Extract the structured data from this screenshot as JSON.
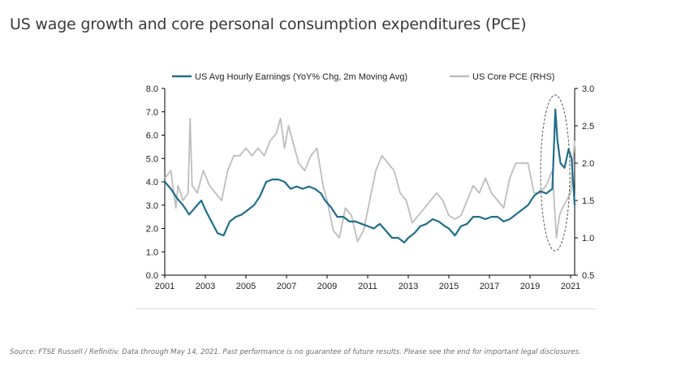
{
  "title": "US wage growth and core personal consumption expenditures (PCE)",
  "source": "Source: FTSE Russell / Refinitiv. Data through May 14, 2021. Past performance is no guarantee of future results. Please see the end for important legal disclosures.",
  "colors": {
    "wage": "#1f6e8c",
    "pce": "#bdbdbd",
    "axis": "#000000"
  },
  "chart_data": {
    "type": "line",
    "legend_position": "top",
    "x_ticks": [
      "2001",
      "2003",
      "2005",
      "2007",
      "2009",
      "2011",
      "2013",
      "2015",
      "2017",
      "2019",
      "2021"
    ],
    "x_range": [
      2001,
      2021.2
    ],
    "y_left": {
      "ticks": [
        "0.0",
        "1.0",
        "2.0",
        "3.0",
        "4.0",
        "5.0",
        "6.0",
        "7.0",
        "8.0"
      ],
      "range": [
        0,
        8
      ]
    },
    "y_right": {
      "ticks": [
        "0.5",
        "1.0",
        "1.5",
        "2.0",
        "2.5",
        "3.0"
      ],
      "range": [
        0.5,
        3.0
      ]
    },
    "annotation": "dashed ellipse highlighting 2020-2021",
    "series": [
      {
        "name": "US Avg Hourly Earnings (YoY% Chg, 2m Moving Avg)",
        "axis": "left",
        "x": [
          2001,
          2001.3,
          2001.6,
          2001.9,
          2002.2,
          2002.5,
          2002.8,
          2003.0,
          2003.3,
          2003.6,
          2003.9,
          2004.2,
          2004.5,
          2004.8,
          2005.1,
          2005.4,
          2005.7,
          2006.0,
          2006.3,
          2006.6,
          2006.9,
          2007.2,
          2007.5,
          2007.8,
          2008.1,
          2008.4,
          2008.7,
          2008.9,
          2009.2,
          2009.5,
          2009.8,
          2010.1,
          2010.4,
          2010.7,
          2011.0,
          2011.3,
          2011.6,
          2011.9,
          2012.2,
          2012.5,
          2012.8,
          2013.0,
          2013.3,
          2013.6,
          2013.9,
          2014.2,
          2014.5,
          2014.8,
          2015.0,
          2015.3,
          2015.6,
          2015.9,
          2016.2,
          2016.5,
          2016.8,
          2017.1,
          2017.4,
          2017.7,
          2018.0,
          2018.3,
          2018.6,
          2018.9,
          2019.2,
          2019.5,
          2019.8,
          2020.1,
          2020.25,
          2020.35,
          2020.5,
          2020.7,
          2020.9,
          2021.05,
          2021.2
        ],
        "values": [
          4.0,
          3.7,
          3.3,
          3.0,
          2.6,
          2.9,
          3.2,
          2.8,
          2.3,
          1.8,
          1.7,
          2.3,
          2.5,
          2.6,
          2.8,
          3.0,
          3.4,
          4.0,
          4.1,
          4.1,
          4.0,
          3.7,
          3.8,
          3.7,
          3.8,
          3.7,
          3.5,
          3.2,
          2.9,
          2.5,
          2.5,
          2.3,
          2.3,
          2.2,
          2.1,
          2.0,
          2.2,
          1.9,
          1.6,
          1.6,
          1.4,
          1.6,
          1.8,
          2.1,
          2.2,
          2.4,
          2.3,
          2.1,
          2.0,
          1.7,
          2.1,
          2.2,
          2.5,
          2.5,
          2.4,
          2.5,
          2.5,
          2.3,
          2.4,
          2.6,
          2.8,
          3.0,
          3.4,
          3.6,
          3.5,
          3.7,
          7.1,
          5.8,
          4.8,
          4.6,
          5.4,
          5.0,
          3.0
        ]
      },
      {
        "name": "US Core PCE (RHS)",
        "axis": "right",
        "x": [
          2001,
          2001.3,
          2001.55,
          2001.65,
          2001.9,
          2002.15,
          2002.25,
          2002.35,
          2002.6,
          2002.9,
          2003.2,
          2003.5,
          2003.8,
          2004.1,
          2004.4,
          2004.7,
          2005.0,
          2005.3,
          2005.6,
          2005.9,
          2006.2,
          2006.5,
          2006.7,
          2006.9,
          2007.1,
          2007.3,
          2007.6,
          2007.9,
          2008.2,
          2008.5,
          2008.8,
          2009.0,
          2009.3,
          2009.6,
          2009.9,
          2010.2,
          2010.5,
          2010.8,
          2011.1,
          2011.4,
          2011.7,
          2012.0,
          2012.3,
          2012.6,
          2012.9,
          2013.2,
          2013.5,
          2013.8,
          2014.1,
          2014.4,
          2014.7,
          2015.0,
          2015.3,
          2015.6,
          2015.9,
          2016.2,
          2016.5,
          2016.8,
          2017.1,
          2017.4,
          2017.7,
          2018.0,
          2018.3,
          2018.6,
          2018.9,
          2019.2,
          2019.5,
          2019.8,
          2020.1,
          2020.3,
          2020.45,
          2020.6,
          2020.8,
          2021.0,
          2021.2
        ],
        "values": [
          1.8,
          1.9,
          1.4,
          1.7,
          1.5,
          1.6,
          2.6,
          1.7,
          1.6,
          1.9,
          1.7,
          1.6,
          1.5,
          1.9,
          2.1,
          2.1,
          2.2,
          2.1,
          2.2,
          2.1,
          2.3,
          2.4,
          2.6,
          2.2,
          2.5,
          2.3,
          2.0,
          1.9,
          2.1,
          2.2,
          1.7,
          1.5,
          1.1,
          1.0,
          1.4,
          1.3,
          0.95,
          1.1,
          1.5,
          1.9,
          2.1,
          2.0,
          1.9,
          1.6,
          1.5,
          1.2,
          1.3,
          1.4,
          1.5,
          1.6,
          1.5,
          1.3,
          1.25,
          1.3,
          1.5,
          1.7,
          1.6,
          1.8,
          1.6,
          1.5,
          1.4,
          1.8,
          2.0,
          2.0,
          2.0,
          1.6,
          1.6,
          1.7,
          1.9,
          1.0,
          1.3,
          1.4,
          1.5,
          1.6,
          2.3
        ]
      }
    ]
  }
}
